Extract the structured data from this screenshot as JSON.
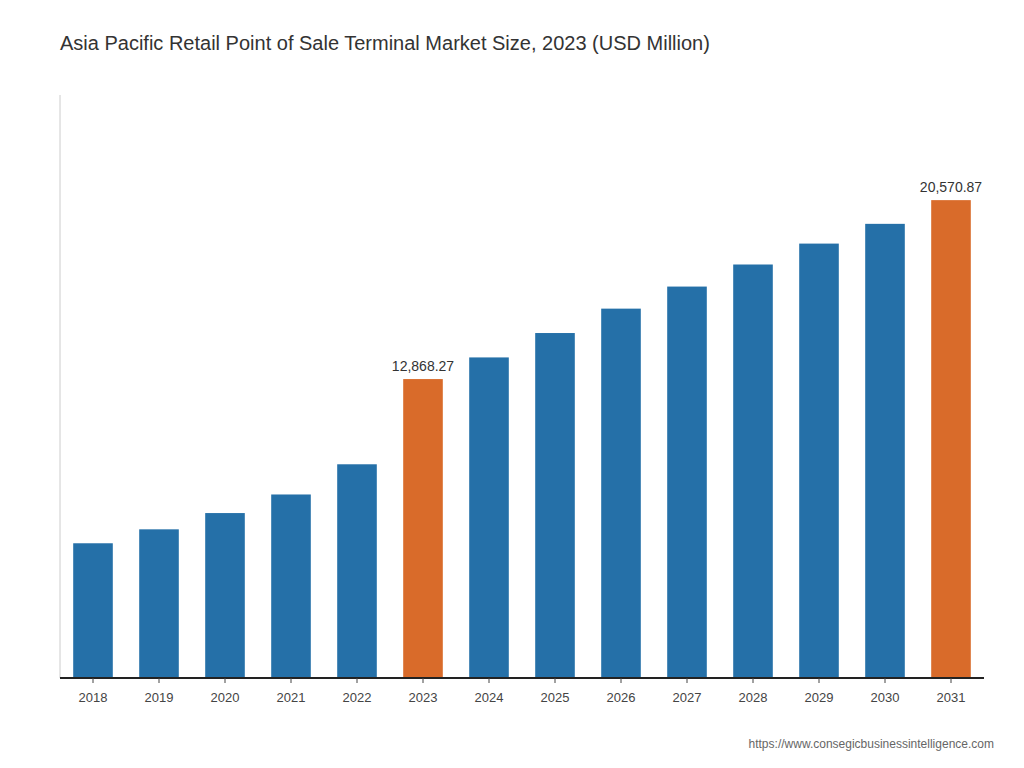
{
  "chart_data": {
    "type": "bar",
    "title": "Asia Pacific Retail Point of Sale Terminal Market Size, 2023 (USD Million)",
    "categories": [
      "2018",
      "2019",
      "2020",
      "2021",
      "2022",
      "2023",
      "2024",
      "2025",
      "2026",
      "2027",
      "2028",
      "2029",
      "2030",
      "2031"
    ],
    "values": [
      5800,
      6400,
      7100,
      7900,
      9200,
      12868.27,
      13800,
      14850,
      15900,
      16850,
      17800,
      18700,
      19550,
      20570.87
    ],
    "value_labels": [
      null,
      null,
      null,
      null,
      null,
      "12,868.27",
      null,
      null,
      null,
      null,
      null,
      null,
      null,
      "20,570.87"
    ],
    "colors": [
      "#2570a8",
      "#2570a8",
      "#2570a8",
      "#2570a8",
      "#2570a8",
      "#d96b2a",
      "#2570a8",
      "#2570a8",
      "#2570a8",
      "#2570a8",
      "#2570a8",
      "#2570a8",
      "#2570a8",
      "#d96b2a"
    ],
    "ylim": [
      0,
      25096.4614
    ],
    "data_labels": true,
    "tick_labels": "x",
    "grid": false,
    "annotations": [
      "https://www.consegicbusinessintelligence.com"
    ]
  }
}
